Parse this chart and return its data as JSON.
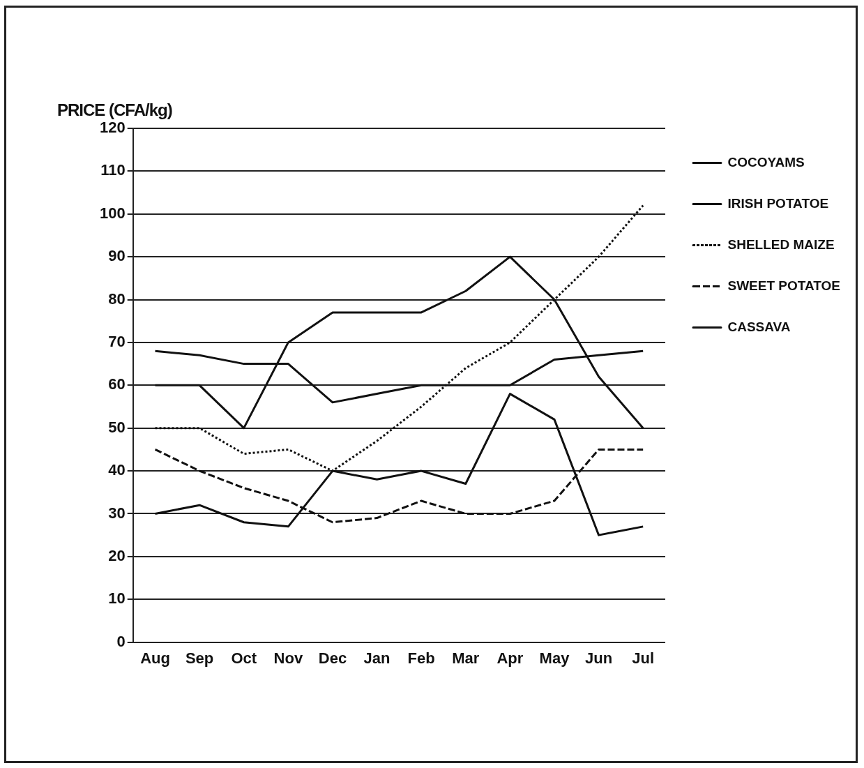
{
  "chart_data": {
    "type": "line",
    "ylabel": "PRICE (CFA/kg)",
    "categories": [
      "Aug",
      "Sep",
      "Oct",
      "Nov",
      "Dec",
      "Jan",
      "Feb",
      "Mar",
      "Apr",
      "May",
      "Jun",
      "Jul"
    ],
    "series": [
      {
        "name": "COCOYAMS",
        "color": "#111111",
        "line_style": "solid",
        "values": [
          68,
          67,
          65,
          65,
          56,
          58,
          60,
          60,
          60,
          66,
          67,
          68
        ]
      },
      {
        "name": "IRISH POTATOE",
        "color": "#111111",
        "line_style": "solid",
        "values": [
          60,
          60,
          50,
          70,
          77,
          77,
          77,
          82,
          90,
          80,
          62,
          50
        ]
      },
      {
        "name": "SHELLED MAIZE",
        "color": "#111111",
        "line_style": "dotted",
        "values": [
          50,
          50,
          44,
          45,
          40,
          47,
          55,
          64,
          70,
          80,
          90,
          102
        ]
      },
      {
        "name": "SWEET POTATOE",
        "color": "#111111",
        "line_style": "dashed",
        "values": [
          45,
          40,
          36,
          33,
          28,
          29,
          33,
          30,
          30,
          33,
          45,
          45
        ]
      },
      {
        "name": "CASSAVA",
        "color": "#111111",
        "line_style": "solid",
        "values": [
          30,
          32,
          28,
          27,
          40,
          38,
          40,
          37,
          58,
          52,
          25,
          27
        ]
      }
    ],
    "ylim": [
      0,
      120
    ],
    "yticks": [
      0,
      10,
      20,
      30,
      40,
      50,
      60,
      70,
      80,
      90,
      100,
      110,
      120
    ],
    "grid": "y",
    "legend": "right",
    "marker": "none"
  }
}
